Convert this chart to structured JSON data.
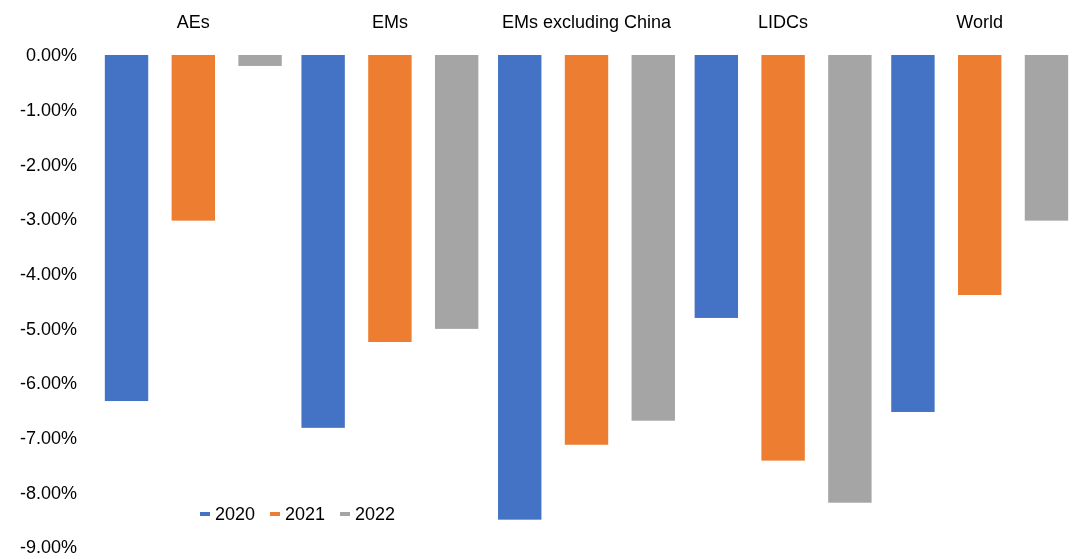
{
  "chart_data": {
    "type": "bar",
    "categories": [
      "AEs",
      "EMs",
      "EMs excluding China",
      "LIDCs",
      "World"
    ],
    "series": [
      {
        "name": "2020",
        "color": "#4472c4",
        "values": [
          -6.33,
          -6.82,
          -8.5,
          -4.81,
          -6.53
        ]
      },
      {
        "name": "2021",
        "color": "#ed7d31",
        "values": [
          -3.03,
          -5.25,
          -7.13,
          -7.42,
          -4.39
        ]
      },
      {
        "name": "2022",
        "color": "#a5a5a5",
        "values": [
          -0.2,
          -5.01,
          -6.69,
          -8.19,
          -3.03
        ]
      }
    ],
    "ylim": [
      -9,
      0
    ],
    "yticks": [
      {
        "value": 0,
        "label": "0.00%"
      },
      {
        "value": -1,
        "label": "-1.00%"
      },
      {
        "value": -2,
        "label": "-2.00%"
      },
      {
        "value": -3,
        "label": "-3.00%"
      },
      {
        "value": -4,
        "label": "-4.00%"
      },
      {
        "value": -5,
        "label": "-5.00%"
      },
      {
        "value": -6,
        "label": "-6.00%"
      },
      {
        "value": -7,
        "label": "-7.00%"
      },
      {
        "value": -8,
        "label": "-8.00%"
      },
      {
        "value": -9,
        "label": "-9.00%"
      }
    ],
    "grid": false,
    "legend": "bottom left"
  }
}
